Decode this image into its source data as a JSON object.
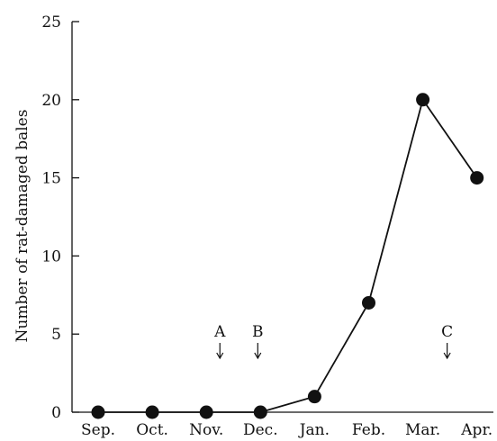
{
  "chart_data": {
    "type": "line",
    "title": "",
    "xlabel": "",
    "ylabel": "Number of rat-damaged bales",
    "categories": [
      "Sep.",
      "Oct.",
      "Nov.",
      "Dec.",
      "Jan.",
      "Feb.",
      "Mar.",
      "Apr."
    ],
    "values": [
      0,
      0,
      0,
      0,
      1,
      7,
      20,
      15
    ],
    "ylim": [
      0,
      25
    ],
    "yticks": [
      "0",
      "5",
      "10",
      "15",
      "20",
      "25"
    ],
    "grid": false,
    "legend": "none",
    "annotations": [
      {
        "label": "A",
        "x_position": 2.25
      },
      {
        "label": "B",
        "x_position": 2.95
      },
      {
        "label": "C",
        "x_position": 6.45
      }
    ],
    "colors": {
      "line": "#111111",
      "marker": "#111111",
      "axis": "#111111"
    }
  }
}
